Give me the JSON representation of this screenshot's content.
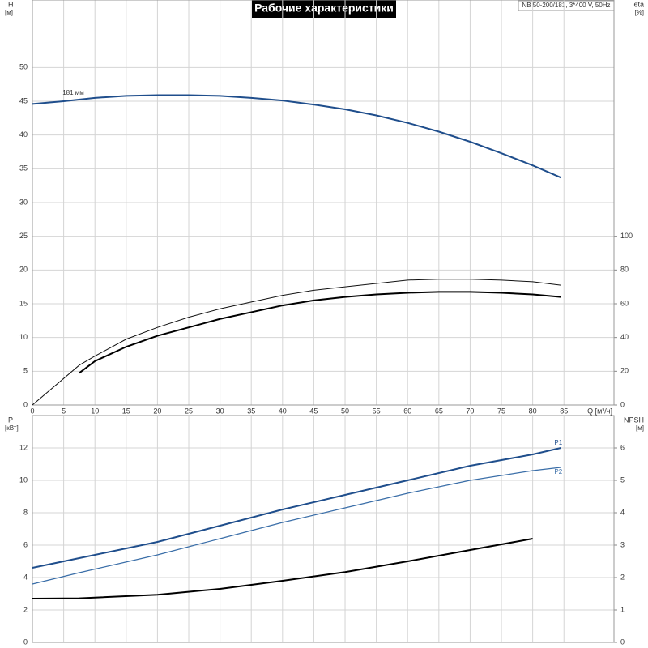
{
  "chart_data": [
    {
      "type": "line",
      "title": "Рабочие характеристики",
      "annotation": "NB 50-200/181, 3*400 V, 50Hz",
      "ylabel": "H",
      "yunit": "[м]",
      "y2label": "eta",
      "y2unit": "[%]",
      "xlabel": "Q [м³/ч]",
      "xlim": [
        0,
        93
      ],
      "xticks": [
        0,
        5,
        10,
        15,
        20,
        25,
        30,
        35,
        40,
        45,
        50,
        55,
        60,
        65,
        70,
        75,
        80,
        85
      ],
      "ylim": [
        0,
        60
      ],
      "yticks": [
        0,
        5,
        10,
        15,
        20,
        25,
        30,
        35,
        40,
        45,
        50
      ],
      "y2lim": [
        0,
        240
      ],
      "y2ticks": [
        0,
        20,
        40,
        60,
        80,
        100
      ],
      "grid": true,
      "series": [
        {
          "name": "181 мм",
          "color": "#1f4e8c",
          "width": 2,
          "x": [
            0,
            5,
            10,
            15,
            20,
            25,
            30,
            35,
            40,
            45,
            50,
            55,
            60,
            65,
            70,
            75,
            80,
            84.5
          ],
          "values": [
            44.6,
            45.0,
            45.5,
            45.8,
            45.9,
            45.9,
            45.8,
            45.5,
            45.1,
            44.5,
            43.8,
            42.9,
            41.8,
            40.5,
            39.0,
            37.3,
            35.5,
            33.7
          ]
        },
        {
          "color": "#111111",
          "width": 1,
          "axis": "y2",
          "x": [
            0,
            7.5,
            10,
            15,
            20,
            25,
            30,
            35,
            40,
            45,
            50,
            55,
            60,
            65,
            70,
            75,
            80,
            84.5
          ],
          "values": [
            0,
            23.6,
            29,
            39,
            46,
            52,
            57,
            61,
            65,
            68,
            70,
            72,
            74,
            74.5,
            74.5,
            74,
            73,
            71
          ]
        },
        {
          "color": "#000000",
          "width": 2,
          "axis": "y2",
          "x": [
            7.5,
            10,
            15,
            20,
            25,
            30,
            35,
            40,
            45,
            50,
            55,
            60,
            65,
            70,
            75,
            80,
            84.5
          ],
          "values": [
            19,
            26,
            34.5,
            41,
            46,
            51,
            55,
            59,
            62,
            64,
            65.5,
            66.5,
            67,
            67,
            66.5,
            65.5,
            64
          ]
        }
      ]
    },
    {
      "type": "line",
      "ylabel": "P",
      "yunit": "[кВт]",
      "y2label": "NPSH",
      "y2unit": "[м]",
      "xlim": [
        0,
        93
      ],
      "xticks": [
        0,
        5,
        10,
        15,
        20,
        25,
        30,
        35,
        40,
        45,
        50,
        55,
        60,
        65,
        70,
        75,
        80,
        85
      ],
      "ylim": [
        0,
        14
      ],
      "yticks": [
        0,
        2,
        4,
        6,
        8,
        10,
        12
      ],
      "y2lim": [
        0,
        7
      ],
      "y2ticks": [
        0,
        1,
        2,
        3,
        4,
        5,
        6
      ],
      "grid": true,
      "series": [
        {
          "name": "P1",
          "color": "#1f4e8c",
          "width": 2,
          "x": [
            0,
            7.5,
            20,
            30,
            40,
            50,
            60,
            70,
            80,
            84.5
          ],
          "values": [
            4.6,
            5.2,
            6.2,
            7.2,
            8.2,
            9.1,
            10.0,
            10.9,
            11.6,
            12.0
          ]
        },
        {
          "name": "P2",
          "color": "#3a6ea8",
          "width": 1.2,
          "x": [
            0,
            7.5,
            20,
            30,
            40,
            50,
            60,
            70,
            80,
            84.5
          ],
          "values": [
            3.6,
            4.3,
            5.4,
            6.4,
            7.4,
            8.3,
            9.2,
            10.0,
            10.6,
            10.8
          ]
        },
        {
          "color": "#000000",
          "width": 2,
          "axis": "y2",
          "x": [
            0,
            7.5,
            20,
            30,
            40,
            50,
            60,
            70,
            80
          ],
          "values": [
            1.35,
            1.36,
            1.47,
            1.65,
            1.9,
            2.17,
            2.5,
            2.85,
            3.2
          ]
        }
      ]
    }
  ]
}
